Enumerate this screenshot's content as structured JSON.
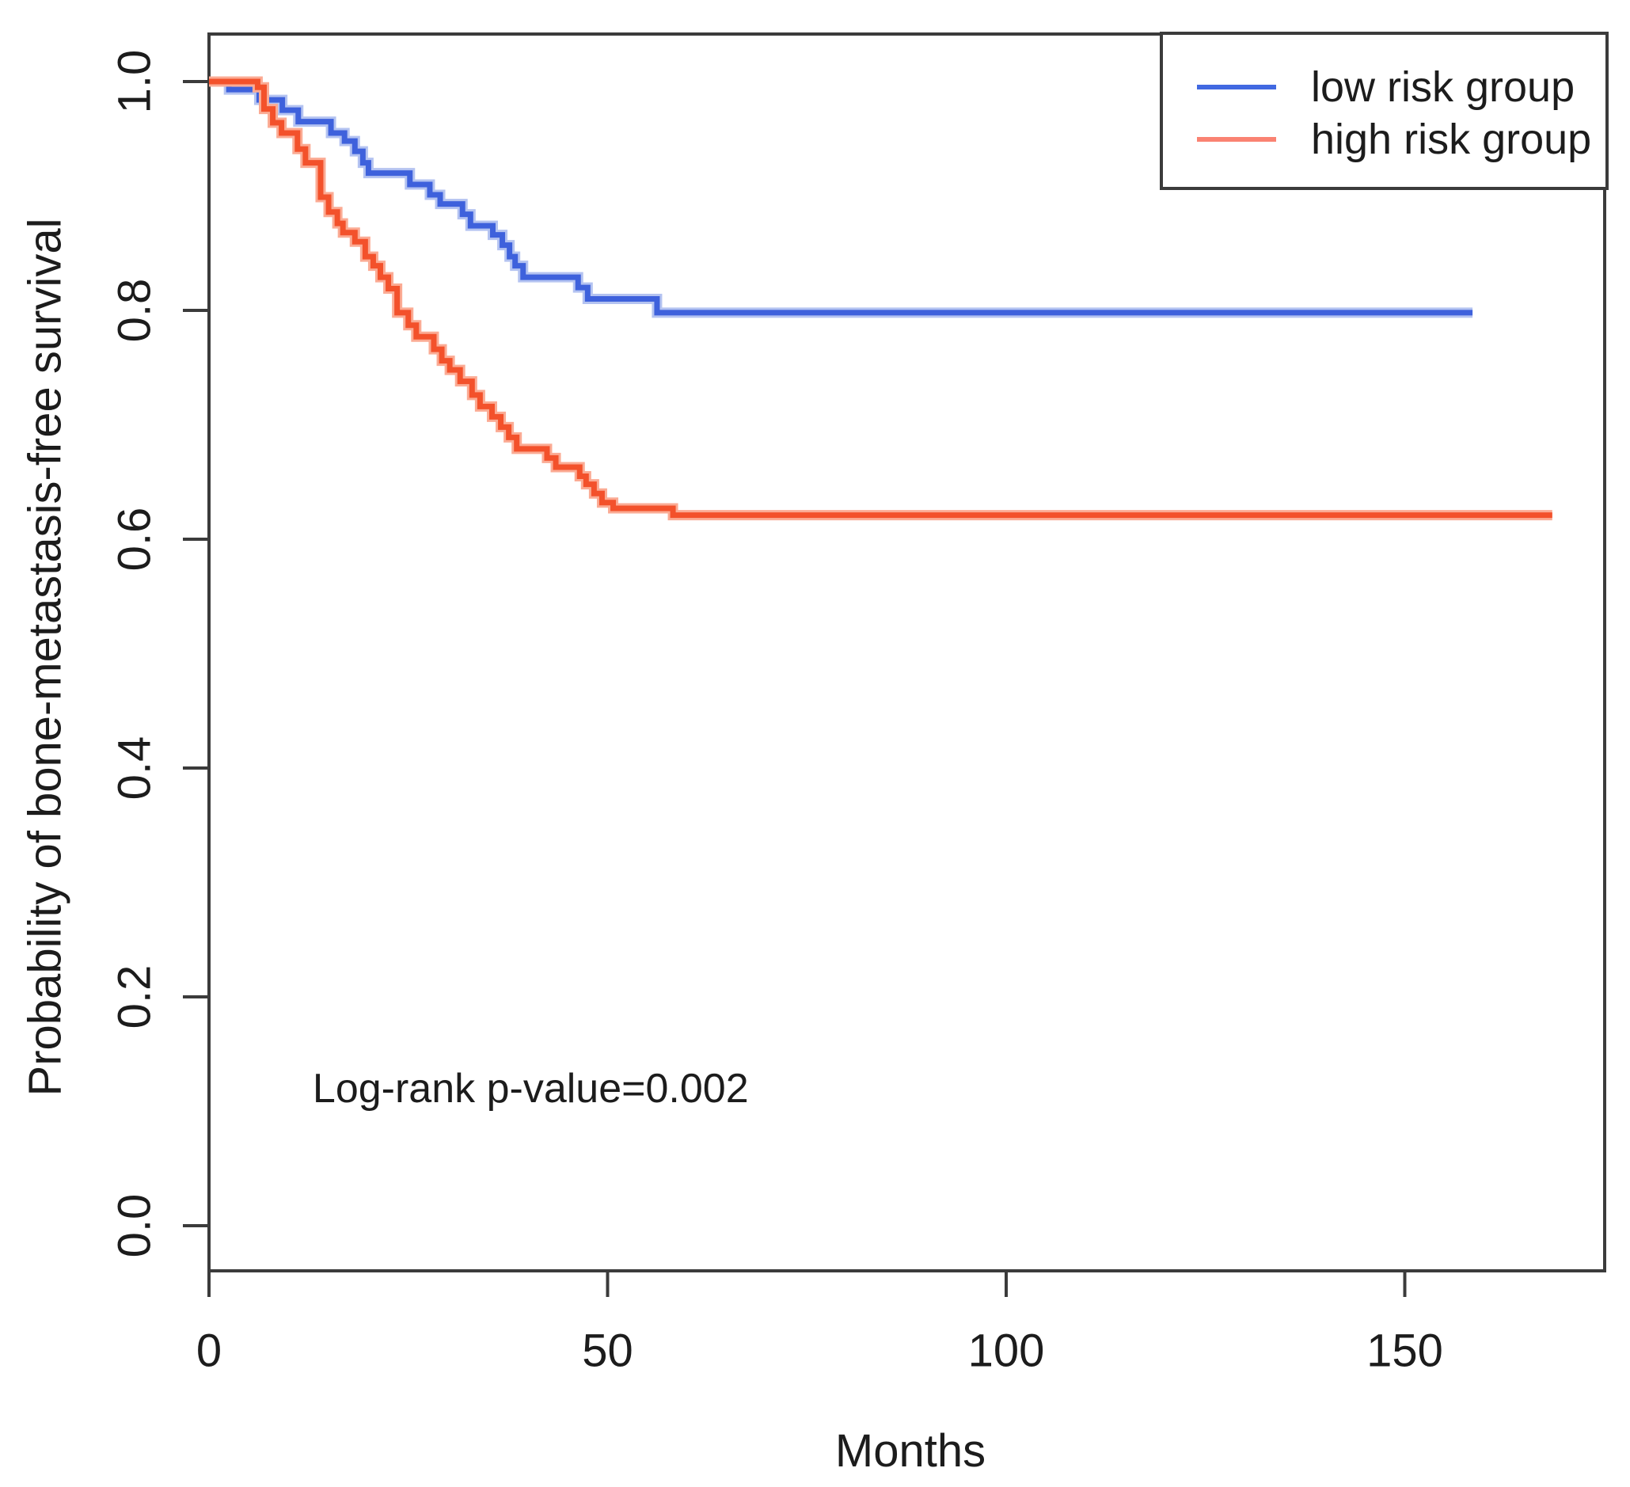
{
  "chart_data": {
    "type": "line",
    "subtype": "kaplan-meier-step",
    "title": "",
    "xlabel": "Months",
    "ylabel": "Probability of bone-metastasis-free survival",
    "xlim": [
      0,
      175
    ],
    "ylim": [
      0,
      1.0
    ],
    "x_ticks": [
      0,
      50,
      100,
      150
    ],
    "y_ticks": [
      "0.0",
      "0.2",
      "0.4",
      "0.6",
      "0.8",
      "1.0"
    ],
    "grid": false,
    "legend_position": "top-right",
    "axis_color": "#3b3b3b",
    "text_color": "#1c1c1c",
    "annotation": {
      "text": "Log-rank p-value=0.002",
      "x_months": 13,
      "y_prob": 0.108
    },
    "series": [
      {
        "name": "low risk group",
        "color": "#3e61dc",
        "halo_color": "#b4c3f1",
        "legend_color": "#4169e1",
        "end_month": 158.5,
        "steps": [
          [
            0,
            1.0
          ],
          [
            2.5,
            0.993
          ],
          [
            6.3,
            0.984
          ],
          [
            9.2,
            0.975
          ],
          [
            11.2,
            0.965
          ],
          [
            15.3,
            0.955
          ],
          [
            17,
            0.948
          ],
          [
            18.3,
            0.939
          ],
          [
            19.3,
            0.929
          ],
          [
            20,
            0.92
          ],
          [
            25.2,
            0.91
          ],
          [
            27.7,
            0.901
          ],
          [
            29,
            0.893
          ],
          [
            31.8,
            0.884
          ],
          [
            32.8,
            0.874
          ],
          [
            35.6,
            0.866
          ],
          [
            36.8,
            0.857
          ],
          [
            37.7,
            0.847
          ],
          [
            38.4,
            0.839
          ],
          [
            39.4,
            0.829
          ],
          [
            46.3,
            0.82
          ],
          [
            47.5,
            0.81
          ],
          [
            56.2,
            0.798
          ]
        ]
      },
      {
        "name": "high risk group",
        "color": "#f3512b",
        "halo_color": "#fbab94",
        "legend_color": "#fa8272",
        "end_month": 168.5,
        "steps": [
          [
            0,
            1.0
          ],
          [
            6.1,
            0.995
          ],
          [
            6.9,
            0.976
          ],
          [
            8,
            0.964
          ],
          [
            9.1,
            0.955
          ],
          [
            11.1,
            0.941
          ],
          [
            12.1,
            0.929
          ],
          [
            14,
            0.899
          ],
          [
            15,
            0.886
          ],
          [
            16.1,
            0.876
          ],
          [
            16.8,
            0.868
          ],
          [
            18.3,
            0.86
          ],
          [
            19.6,
            0.847
          ],
          [
            20.6,
            0.839
          ],
          [
            21.5,
            0.829
          ],
          [
            22.5,
            0.819
          ],
          [
            23.6,
            0.798
          ],
          [
            25,
            0.787
          ],
          [
            26,
            0.777
          ],
          [
            28.2,
            0.766
          ],
          [
            29.2,
            0.756
          ],
          [
            30.2,
            0.748
          ],
          [
            31.5,
            0.738
          ],
          [
            33,
            0.726
          ],
          [
            34,
            0.716
          ],
          [
            35.5,
            0.707
          ],
          [
            36.6,
            0.698
          ],
          [
            37.6,
            0.689
          ],
          [
            38.6,
            0.679
          ],
          [
            42.4,
            0.671
          ],
          [
            43.5,
            0.663
          ],
          [
            46.5,
            0.655
          ],
          [
            47.3,
            0.648
          ],
          [
            48.3,
            0.64
          ],
          [
            49.3,
            0.632
          ],
          [
            50.7,
            0.627
          ],
          [
            58.2,
            0.621
          ]
        ]
      }
    ]
  }
}
